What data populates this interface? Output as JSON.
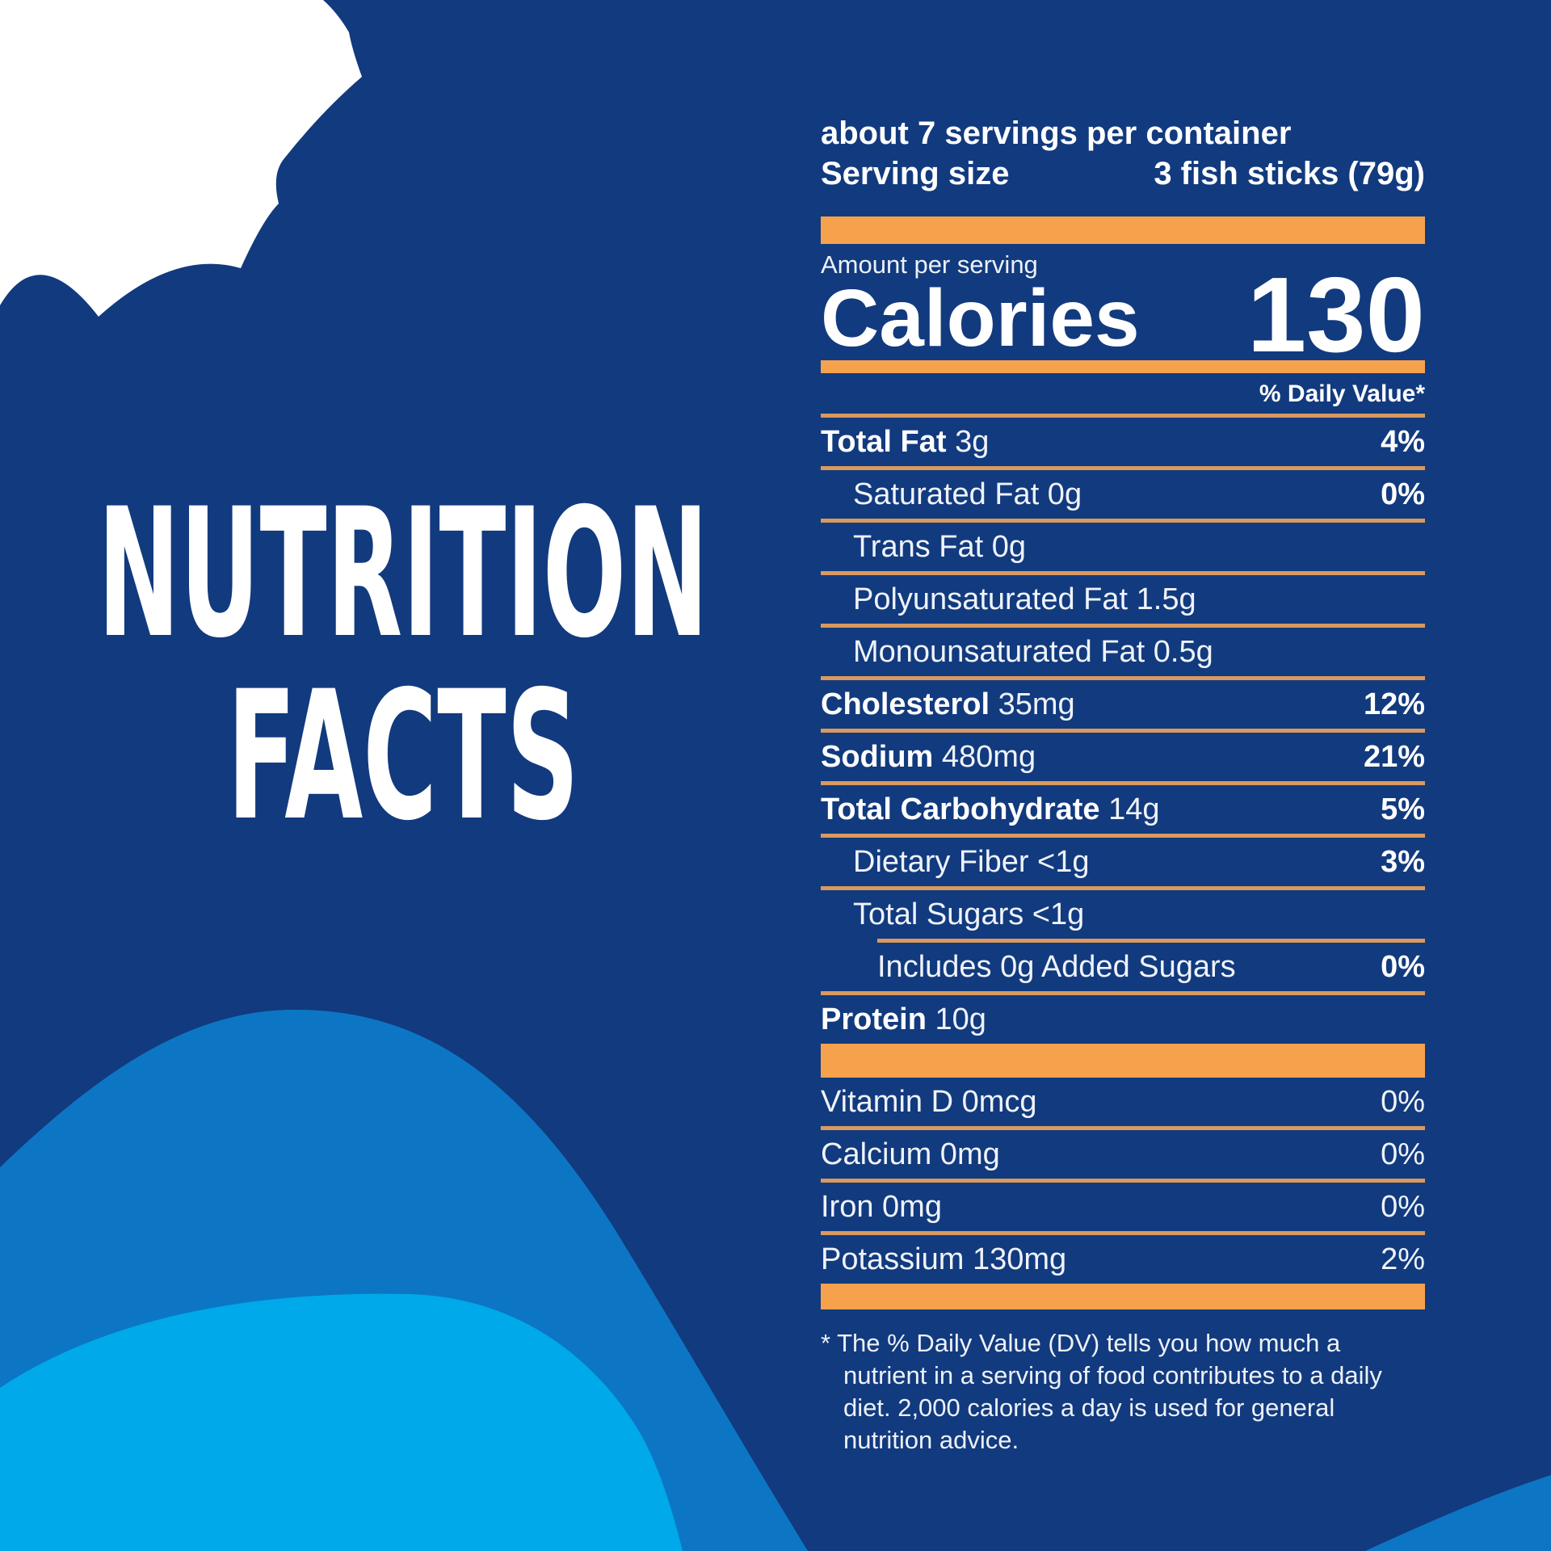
{
  "colors": {
    "background": "#123A7E",
    "wave_mid_blue": "#0C76C5",
    "wave_light_blue": "#00A9E9",
    "splash_white": "#FFFFFF",
    "bar_orange": "#F6A24D",
    "divider_tan": "#D9995F",
    "text_white": "#FFFFFF"
  },
  "title": {
    "line1": "NUTRITION",
    "line2": "FACTS"
  },
  "header": {
    "servings_per_container": "about 7 servings per container",
    "serving_size_label": "Serving size",
    "serving_size_value": "3 fish sticks (79g)"
  },
  "calories": {
    "amount_per_serving": "Amount per serving",
    "label": "Calories",
    "value": "130",
    "daily_value_header": "% Daily Value*"
  },
  "nutrients": [
    {
      "name": "Total Fat",
      "amount": "3g",
      "dv": "4%",
      "bold": true,
      "dv_bold": true,
      "indent": 0,
      "divider_indent": 0
    },
    {
      "name": "Saturated Fat",
      "amount": "0g",
      "dv": "0%",
      "bold": false,
      "dv_bold": true,
      "indent": 40,
      "divider_indent": 0
    },
    {
      "name": "Trans Fat",
      "amount": "0g",
      "dv": "",
      "bold": false,
      "dv_bold": false,
      "indent": 40,
      "divider_indent": 0
    },
    {
      "name": "Polyunsaturated Fat",
      "amount": "1.5g",
      "dv": "",
      "bold": false,
      "dv_bold": false,
      "indent": 40,
      "divider_indent": 0
    },
    {
      "name": "Monounsaturated Fat",
      "amount": "0.5g",
      "dv": "",
      "bold": false,
      "dv_bold": false,
      "indent": 40,
      "divider_indent": 0
    },
    {
      "name": "Cholesterol",
      "amount": "35mg",
      "dv": "12%",
      "bold": true,
      "dv_bold": true,
      "indent": 0,
      "divider_indent": 0
    },
    {
      "name": "Sodium",
      "amount": "480mg",
      "dv": "21%",
      "bold": true,
      "dv_bold": true,
      "indent": 0,
      "divider_indent": 0
    },
    {
      "name": "Total Carbohydrate",
      "amount": "14g",
      "dv": "5%",
      "bold": true,
      "dv_bold": true,
      "indent": 0,
      "divider_indent": 0
    },
    {
      "name": "Dietary Fiber",
      "amount": "<1g",
      "dv": "3%",
      "bold": false,
      "dv_bold": true,
      "indent": 40,
      "divider_indent": 0
    },
    {
      "name": "Total Sugars",
      "amount": "<1g",
      "dv": "",
      "bold": false,
      "dv_bold": false,
      "indent": 40,
      "divider_indent": 0
    },
    {
      "name": "Includes 0g Added Sugars",
      "amount": "",
      "dv": "0%",
      "bold": false,
      "dv_bold": true,
      "indent": 70,
      "divider_indent": 70
    },
    {
      "name": "Protein",
      "amount": "10g",
      "dv": "",
      "bold": true,
      "dv_bold": false,
      "indent": 0,
      "divider_indent": 0
    }
  ],
  "vitamins": [
    {
      "name": "Vitamin D",
      "amount": "0mcg",
      "dv": "0%"
    },
    {
      "name": "Calcium",
      "amount": "0mg",
      "dv": "0%"
    },
    {
      "name": "Iron",
      "amount": "0mg",
      "dv": "0%"
    },
    {
      "name": "Potassium",
      "amount": "130mg",
      "dv": "2%"
    }
  ],
  "footnote": "* The % Daily Value (DV) tells you how much a nutrient in a serving of food contributes to a daily diet. 2,000 calories a day is used for general nutrition advice."
}
